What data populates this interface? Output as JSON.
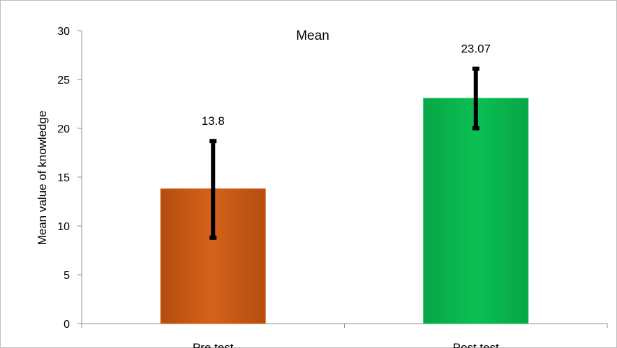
{
  "chart_data": {
    "type": "bar",
    "title": "Mean",
    "ylabel": "Mean value of knowledge",
    "xlabel": "",
    "categories": [
      "Pre test",
      "Post test"
    ],
    "values": [
      13.8,
      23.07
    ],
    "value_labels": [
      "13.8",
      "23.07"
    ],
    "error_bars": [
      {
        "low": 8.8,
        "high": 18.7
      },
      {
        "low": 20.0,
        "high": 26.1
      }
    ],
    "colors": [
      "#d4621a",
      "#0abf53"
    ],
    "ylim": [
      0,
      30
    ],
    "yticks": [
      "0",
      "5",
      "10",
      "15",
      "20",
      "25",
      "30"
    ],
    "grid": false,
    "legend": "none"
  }
}
